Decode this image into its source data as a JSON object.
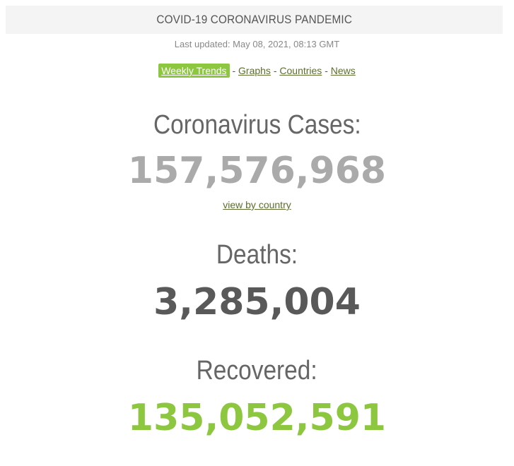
{
  "header": {
    "title": "COVID-19 CORONAVIRUS PANDEMIC",
    "last_updated": "Last updated: May 08, 2021, 08:13 GMT"
  },
  "nav": {
    "items": [
      {
        "label": "Weekly Trends",
        "active": true
      },
      {
        "label": "Graphs",
        "active": false
      },
      {
        "label": "Countries",
        "active": false
      },
      {
        "label": "News",
        "active": false
      }
    ],
    "separator": " - "
  },
  "stats": {
    "cases": {
      "label": "Coronavirus Cases:",
      "value": "157,576,968",
      "link": "view by country"
    },
    "deaths": {
      "label": "Deaths:",
      "value": "3,285,004"
    },
    "recovered": {
      "label": "Recovered:",
      "value": "135,052,591"
    }
  },
  "colors": {
    "accent_green": "#8dc63f",
    "cases_gray": "#aaaaaa",
    "deaths_dark": "#595959",
    "link_olive": "#5b6e2d"
  }
}
